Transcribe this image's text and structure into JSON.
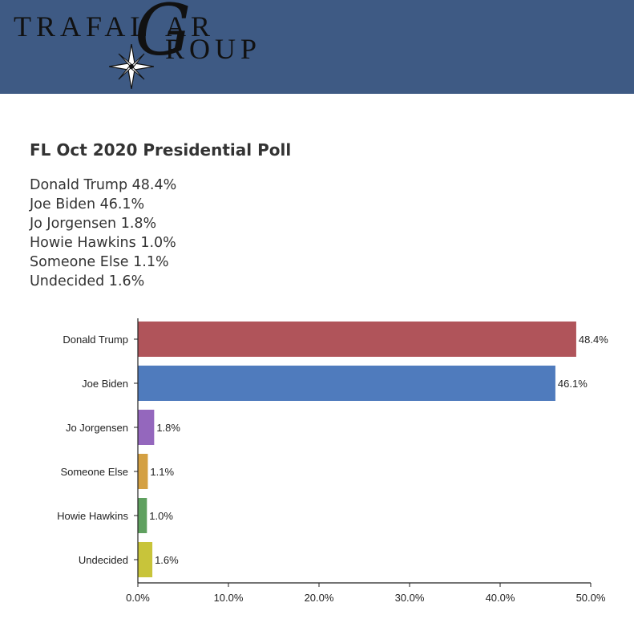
{
  "colors": {
    "header_bg": "#3e5a84",
    "trump": "#b0545a",
    "biden": "#4f7bbd",
    "jorgensen": "#9467bd",
    "someone_else": "#d4a042",
    "hawkins": "#5fa05f",
    "undecided": "#c8c43a"
  },
  "header": {
    "logo_top": "TRAFAL",
    "logo_g": "G",
    "logo_bottom": "AR",
    "logo_bottom2": "ROUP",
    "logo_icon": "compass-star-icon"
  },
  "title": "FL Oct 2020 Presidential Poll",
  "summary": [
    "Donald Trump 48.4%",
    "Joe Biden 46.1%",
    "Jo Jorgensen 1.8%",
    "Howie Hawkins 1.0%",
    "Someone Else 1.1%",
    "Undecided 1.6%"
  ],
  "chart_data": {
    "type": "bar",
    "orientation": "horizontal",
    "categories": [
      "Donald Trump",
      "Joe Biden",
      "Jo Jorgensen",
      "Someone Else",
      "Howie Hawkins",
      "Undecided"
    ],
    "values": [
      48.4,
      46.1,
      1.8,
      1.1,
      1.0,
      1.6
    ],
    "data_labels": [
      "48.4%",
      "46.1%",
      "1.8%",
      "1.1%",
      "1.0%",
      "1.6%"
    ],
    "bar_colors": [
      "#b0545a",
      "#4f7bbd",
      "#9467bd",
      "#d4a042",
      "#5fa05f",
      "#c8c43a"
    ],
    "x_ticks": [
      0,
      10,
      20,
      30,
      40,
      50
    ],
    "x_tick_labels": [
      "0.0%",
      "10.0%",
      "20.0%",
      "30.0%",
      "40.0%",
      "50.0%"
    ],
    "xlim": [
      0,
      50
    ],
    "title": "",
    "xlabel": "",
    "ylabel": "",
    "grid": false,
    "legend": "none"
  }
}
